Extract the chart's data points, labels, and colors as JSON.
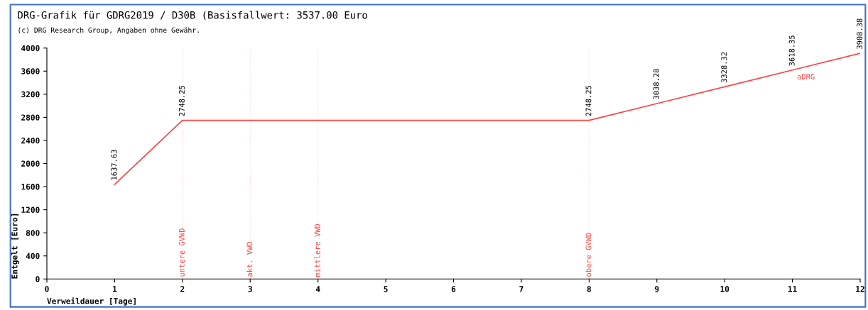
{
  "chart_data": {
    "type": "line",
    "title": "DRG-Grafik für GDRG2019 / D30B (Basisfallwert: 3537.00 Euro",
    "subtitle": "(c) DRG Research Group, Angaben ohne Gewähr.",
    "xlabel": "Verweildauer [Tage]",
    "ylabel": "Entgelt [Euro]",
    "series": [
      {
        "name": "aDRG",
        "color": "#ff4040",
        "x": [
          1,
          2,
          8,
          9,
          10,
          11,
          12
        ],
        "values": [
          1637.63,
          2748.25,
          2748.25,
          3038.28,
          3328.32,
          3618.35,
          3908.38
        ]
      }
    ],
    "data_labels": true,
    "ref_lines": [
      {
        "axis": "x",
        "value": 2,
        "label": "untere GVWD",
        "color": "#ffd6d6",
        "line_style": "dotted"
      },
      {
        "axis": "x",
        "value": 3,
        "label": "akt. VWD",
        "color": "#ffd6d6",
        "line_style": "dotted"
      },
      {
        "axis": "x",
        "value": 4,
        "label": "mittlere VWD",
        "color": "#ffd6d6",
        "line_style": "dotted"
      },
      {
        "axis": "x",
        "value": 8,
        "label": "obere GVWD",
        "color": "#ffd6d6",
        "line_style": "dotted"
      }
    ],
    "xlim": [
      0,
      12
    ],
    "xticks": [
      0,
      1,
      2,
      3,
      4,
      5,
      6,
      7,
      8,
      9,
      10,
      11,
      12
    ],
    "ylim": [
      0,
      4000
    ],
    "yticks": [
      0,
      400,
      800,
      1200,
      1600,
      2000,
      2400,
      2800,
      3200,
      3600,
      4000
    ],
    "grid": false,
    "legend": false
  }
}
